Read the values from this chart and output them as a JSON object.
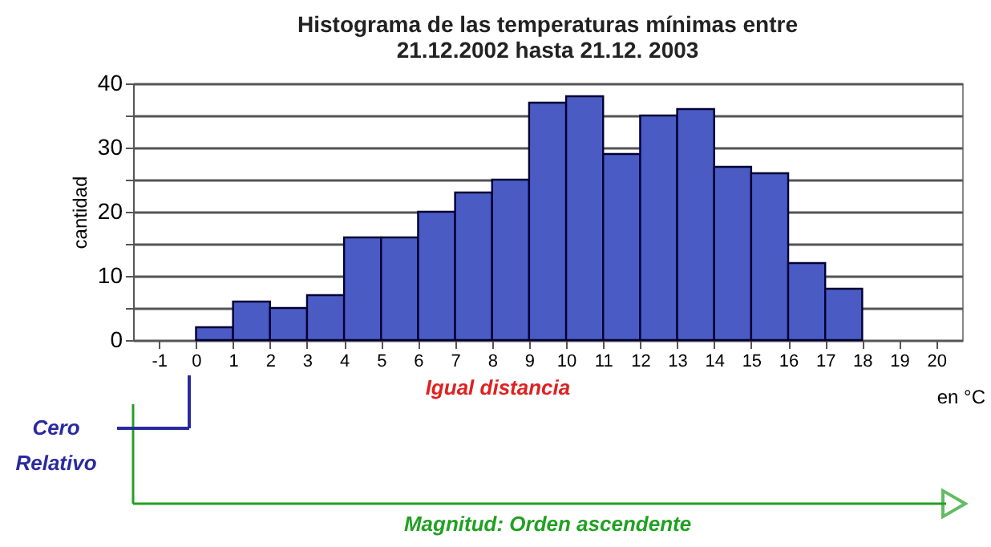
{
  "chart_data": {
    "type": "histogram",
    "title": [
      "Histograma de las temperaturas mínimas entre",
      "21.12.2002 hasta 21.12. 2003"
    ],
    "xlabel": "en °C",
    "ylabel": "cantidad",
    "bins": [
      0,
      1,
      2,
      3,
      4,
      5,
      6,
      7,
      8,
      9,
      10,
      11,
      12,
      13,
      14,
      15,
      16,
      17,
      18
    ],
    "values": [
      2,
      6,
      5,
      7,
      16,
      16,
      20,
      23,
      25,
      37,
      38,
      29,
      35,
      36,
      27,
      26,
      12,
      8
    ],
    "color": "#4a5bc4",
    "xlim": [
      -1.7,
      20.7
    ],
    "xticks": [
      -1,
      0,
      1,
      2,
      3,
      4,
      5,
      6,
      7,
      8,
      9,
      10,
      11,
      12,
      13,
      14,
      15,
      16,
      17,
      18,
      19,
      20
    ],
    "ylim": [
      0,
      40
    ],
    "yticks": [
      0,
      {
        "value": 5,
        "label": null
      },
      10,
      {
        "value": 15,
        "label": null
      },
      20,
      {
        "value": 25,
        "label": null
      },
      30,
      {
        "value": 35,
        "label": null
      },
      40
    ],
    "grid": "y",
    "annotations": [
      "Cero Relativo",
      "Igual distancia",
      "Magnitud: Orden ascendente"
    ]
  }
}
